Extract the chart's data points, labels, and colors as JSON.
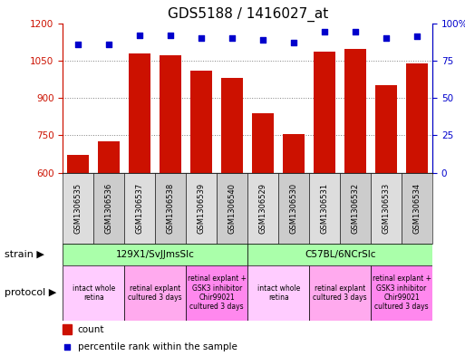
{
  "title": "GDS5188 / 1416027_at",
  "samples": [
    "GSM1306535",
    "GSM1306536",
    "GSM1306537",
    "GSM1306538",
    "GSM1306539",
    "GSM1306540",
    "GSM1306529",
    "GSM1306530",
    "GSM1306531",
    "GSM1306532",
    "GSM1306533",
    "GSM1306534"
  ],
  "counts": [
    670,
    725,
    1080,
    1070,
    1010,
    980,
    840,
    755,
    1085,
    1095,
    950,
    1040
  ],
  "percentiles": [
    86,
    86,
    92,
    92,
    90,
    90,
    89,
    87,
    94,
    94,
    90,
    91
  ],
  "bar_color": "#cc1100",
  "dot_color": "#0000cc",
  "ylim_left": [
    600,
    1200
  ],
  "ylim_right": [
    0,
    100
  ],
  "yticks_left": [
    600,
    750,
    900,
    1050,
    1200
  ],
  "yticks_right": [
    0,
    25,
    50,
    75,
    100
  ],
  "strain_groups": [
    {
      "label": "129X1/SvJJmsSlc",
      "start": 0,
      "end": 6,
      "color": "#aaffaa"
    },
    {
      "label": "C57BL/6NCrSlc",
      "start": 6,
      "end": 12,
      "color": "#aaffaa"
    }
  ],
  "protocol_groups": [
    {
      "label": "intact whole\nretina",
      "start": 0,
      "end": 2,
      "color": "#ffccff"
    },
    {
      "label": "retinal explant\ncultured 3 days",
      "start": 2,
      "end": 4,
      "color": "#ffaaee"
    },
    {
      "label": "retinal explant +\nGSK3 inhibitor\nChir99021\ncultured 3 days",
      "start": 4,
      "end": 6,
      "color": "#ff88ee"
    },
    {
      "label": "intact whole\nretina",
      "start": 6,
      "end": 8,
      "color": "#ffccff"
    },
    {
      "label": "retinal explant\ncultured 3 days",
      "start": 8,
      "end": 10,
      "color": "#ffaaee"
    },
    {
      "label": "retinal explant +\nGSK3 inhibitor\nChir99021\ncultured 3 days",
      "start": 10,
      "end": 12,
      "color": "#ff88ee"
    }
  ],
  "strain_label": "strain",
  "protocol_label": "protocol",
  "legend_count_label": "count",
  "legend_pct_label": "percentile rank within the sample",
  "title_fontsize": 11,
  "tick_fontsize": 7.5,
  "sample_fontsize": 6.0,
  "annot_fontsize": 7.5,
  "protocol_fontsize": 5.5,
  "legend_fontsize": 7.5,
  "label_fontsize": 8
}
